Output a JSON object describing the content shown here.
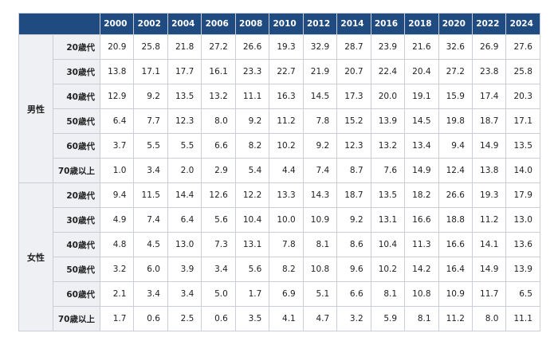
{
  "years": [
    "2000",
    "2002",
    "2004",
    "2006",
    "2008",
    "2010",
    "2012",
    "2014",
    "2016",
    "2018",
    "2020",
    "2022",
    "2024"
  ],
  "groups": [
    {
      "gender": "男性",
      "rows": [
        {
          "age": "20歳代",
          "values": [
            "20.9",
            "25.8",
            "21.8",
            "27.2",
            "26.6",
            "19.3",
            "32.9",
            "28.7",
            "23.9",
            "21.6",
            "32.6",
            "26.9",
            "27.6"
          ]
        },
        {
          "age": "30歳代",
          "values": [
            "13.8",
            "17.1",
            "17.7",
            "16.1",
            "23.3",
            "22.7",
            "21.9",
            "20.7",
            "22.4",
            "20.4",
            "27.2",
            "23.8",
            "25.8"
          ]
        },
        {
          "age": "40歳代",
          "values": [
            "12.9",
            "9.2",
            "13.5",
            "13.2",
            "11.1",
            "16.3",
            "14.5",
            "17.3",
            "20.0",
            "19.1",
            "15.9",
            "17.4",
            "20.3"
          ]
        },
        {
          "age": "50歳代",
          "values": [
            "6.4",
            "7.7",
            "12.3",
            "8.0",
            "9.2",
            "11.2",
            "7.8",
            "15.2",
            "13.9",
            "14.5",
            "19.8",
            "18.7",
            "17.1"
          ]
        },
        {
          "age": "60歳代",
          "values": [
            "3.7",
            "5.5",
            "5.5",
            "6.6",
            "8.2",
            "10.2",
            "9.2",
            "12.3",
            "13.2",
            "13.4",
            "9.4",
            "14.9",
            "13.5"
          ]
        },
        {
          "age": "70歳以上",
          "values": [
            "1.0",
            "3.4",
            "2.0",
            "2.9",
            "5.4",
            "4.4",
            "7.4",
            "8.7",
            "7.6",
            "14.9",
            "12.4",
            "13.8",
            "14.0"
          ]
        }
      ]
    },
    {
      "gender": "女性",
      "rows": [
        {
          "age": "20歳代",
          "values": [
            "9.4",
            "11.5",
            "14.4",
            "12.6",
            "12.2",
            "13.3",
            "14.3",
            "18.7",
            "13.5",
            "18.2",
            "26.6",
            "19.3",
            "17.9"
          ]
        },
        {
          "age": "30歳代",
          "values": [
            "4.9",
            "7.4",
            "6.4",
            "5.6",
            "10.4",
            "10.0",
            "10.9",
            "9.2",
            "13.1",
            "16.6",
            "18.8",
            "11.2",
            "13.0"
          ]
        },
        {
          "age": "40歳代",
          "values": [
            "4.8",
            "4.5",
            "13.0",
            "7.3",
            "13.1",
            "7.8",
            "8.1",
            "8.6",
            "10.4",
            "11.3",
            "16.6",
            "14.1",
            "13.6"
          ]
        },
        {
          "age": "50歳代",
          "values": [
            "3.2",
            "6.0",
            "3.9",
            "3.4",
            "5.6",
            "8.2",
            "10.8",
            "9.6",
            "10.2",
            "14.2",
            "16.4",
            "14.9",
            "13.9"
          ]
        },
        {
          "age": "60歳代",
          "values": [
            "2.1",
            "3.4",
            "3.4",
            "5.0",
            "1.7",
            "6.9",
            "5.1",
            "6.6",
            "8.1",
            "10.8",
            "10.9",
            "11.7",
            "6.5"
          ]
        },
        {
          "age": "70歳以上",
          "values": [
            "1.7",
            "0.6",
            "2.5",
            "0.6",
            "3.5",
            "4.1",
            "4.7",
            "3.2",
            "5.9",
            "8.1",
            "11.2",
            "8.0",
            "11.1"
          ]
        }
      ]
    }
  ]
}
